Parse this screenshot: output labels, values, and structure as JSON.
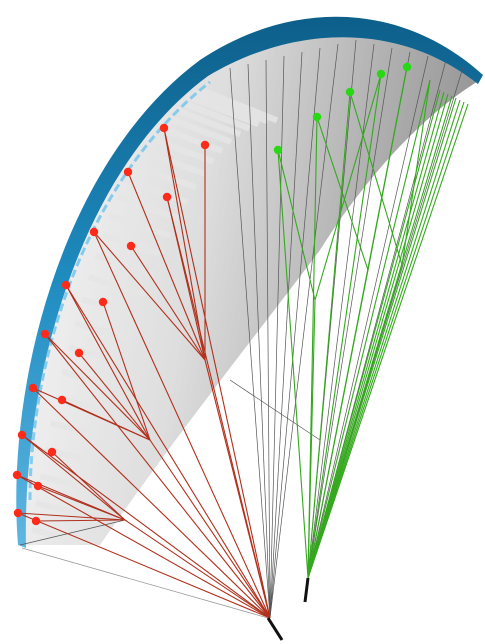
{
  "diagram": {
    "subject": "paraglider-wing-line-diagram",
    "colors": {
      "background": "#ffffff",
      "canopy_top": "#1f8cc0",
      "canopy_top_dark": "#0d5f8a",
      "canopy_highlight": "#7cc8ec",
      "canopy_underside_light": "#f4f4f4",
      "canopy_underside_shadow": "#9a9a9a",
      "rib": "#e2e2e2",
      "line_red": "#b0301c",
      "line_green": "#35a81f",
      "line_grey": "#555555",
      "attach_red": "#ff2b1a",
      "attach_green": "#28d814",
      "riser": "#111111"
    },
    "line_sets": [
      {
        "name": "left-red",
        "attachment_count": 19
      },
      {
        "name": "right-green",
        "attachment_count": 6
      }
    ]
  }
}
